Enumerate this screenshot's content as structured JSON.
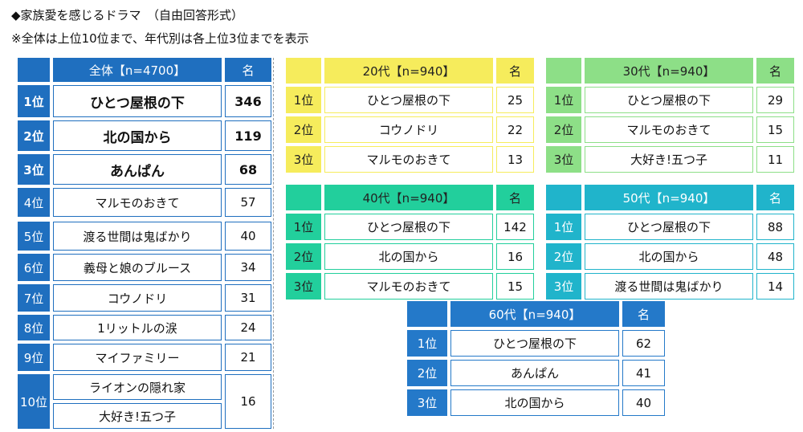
{
  "title": "◆家族愛を感じるドラマ　（自由回答形式）",
  "note": "※全体は上位10位まで、年代別は各上位3位までを表示",
  "count_header": "名",
  "overall": {
    "header": "全体【n=4700】",
    "color": "#1f6fbf",
    "rows": [
      {
        "rank": "1位",
        "titles": [
          "ひとつ屋根の下"
        ],
        "count": "346"
      },
      {
        "rank": "2位",
        "titles": [
          "北の国から"
        ],
        "count": "119"
      },
      {
        "rank": "3位",
        "titles": [
          "あんぱん"
        ],
        "count": "68"
      },
      {
        "rank": "4位",
        "titles": [
          "マルモのおきて"
        ],
        "count": "57"
      },
      {
        "rank": "5位",
        "titles": [
          "渡る世間は鬼ばかり"
        ],
        "count": "40"
      },
      {
        "rank": "6位",
        "titles": [
          "義母と娘のブルース"
        ],
        "count": "34"
      },
      {
        "rank": "7位",
        "titles": [
          "コウノドリ"
        ],
        "count": "31"
      },
      {
        "rank": "8位",
        "titles": [
          "1リットルの涙"
        ],
        "count": "24"
      },
      {
        "rank": "9位",
        "titles": [
          "マイファミリー"
        ],
        "count": "21"
      },
      {
        "rank": "10位",
        "titles": [
          "ライオンの隠れ家",
          "大好き!五つ子"
        ],
        "count": "16"
      }
    ]
  },
  "age_groups": [
    {
      "header": "20代【n=940】",
      "color": "#f6ec5c",
      "text": "#222",
      "rows": [
        {
          "rank": "1位",
          "title": "ひとつ屋根の下",
          "count": "25"
        },
        {
          "rank": "2位",
          "title": "コウノドリ",
          "count": "22"
        },
        {
          "rank": "3位",
          "title": "マルモのおきて",
          "count": "13"
        }
      ]
    },
    {
      "header": "30代【n=940】",
      "color": "#8ddf87",
      "text": "#222",
      "rows": [
        {
          "rank": "1位",
          "title": "ひとつ屋根の下",
          "count": "29"
        },
        {
          "rank": "2位",
          "title": "マルモのおきて",
          "count": "15"
        },
        {
          "rank": "3位",
          "title": "大好き!五つ子",
          "count": "11"
        }
      ]
    },
    {
      "header": "40代【n=940】",
      "color": "#22cf9c",
      "text": "#222",
      "rows": [
        {
          "rank": "1位",
          "title": "ひとつ屋根の下",
          "count": "142"
        },
        {
          "rank": "2位",
          "title": "北の国から",
          "count": "16"
        },
        {
          "rank": "3位",
          "title": "マルモのおきて",
          "count": "15"
        }
      ]
    },
    {
      "header": "50代【n=940】",
      "color": "#20b4cb",
      "text": "#fff",
      "rows": [
        {
          "rank": "1位",
          "title": "ひとつ屋根の下",
          "count": "88"
        },
        {
          "rank": "2位",
          "title": "北の国から",
          "count": "48"
        },
        {
          "rank": "3位",
          "title": "渡る世間は鬼ばかり",
          "count": "14"
        }
      ]
    },
    {
      "header": "60代【n=940】",
      "color": "#2479c9",
      "text": "#fff",
      "rows": [
        {
          "rank": "1位",
          "title": "ひとつ屋根の下",
          "count": "62"
        },
        {
          "rank": "2位",
          "title": "あんぱん",
          "count": "41"
        },
        {
          "rank": "3位",
          "title": "北の国から",
          "count": "40"
        }
      ]
    }
  ]
}
